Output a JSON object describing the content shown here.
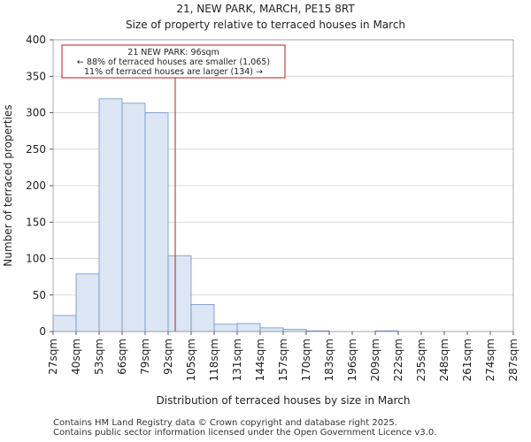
{
  "chart_data": {
    "type": "bar",
    "title": "21, NEW PARK, MARCH, PE15 8RT",
    "subtitle": "Size of property relative to terraced houses in March",
    "xlabel": "Distribution of terraced houses by size in March",
    "ylabel": "Number of terraced properties",
    "ylim": [
      0,
      400
    ],
    "yticks": [
      0,
      50,
      100,
      150,
      200,
      250,
      300,
      350,
      400
    ],
    "bin_edges": [
      27,
      40,
      53,
      66,
      79,
      92,
      105,
      118,
      131,
      144,
      157,
      170,
      183,
      196,
      209,
      222,
      235,
      248,
      261,
      274,
      287
    ],
    "xtick_labels": [
      "27sqm",
      "40sqm",
      "53sqm",
      "66sqm",
      "79sqm",
      "92sqm",
      "105sqm",
      "118sqm",
      "131sqm",
      "144sqm",
      "157sqm",
      "170sqm",
      "183sqm",
      "196sqm",
      "209sqm",
      "222sqm",
      "235sqm",
      "248sqm",
      "261sqm",
      "274sqm",
      "287sqm"
    ],
    "values": [
      22,
      79,
      319,
      313,
      300,
      104,
      37,
      10,
      11,
      5,
      3,
      1,
      0,
      0,
      1,
      0,
      0,
      0,
      0,
      0
    ],
    "marker_value": 96,
    "annotation": [
      "21 NEW PARK: 96sqm",
      "← 88% of terraced houses are smaller (1,065)",
      "11% of terraced houses are larger (134) →"
    ],
    "colors": {
      "bar_fill": "#dce6f4",
      "bar_edge": "#6f93c9",
      "marker": "#b22222",
      "grid": "#cccccc"
    }
  },
  "footer": {
    "line1": "Contains HM Land Registry data © Crown copyright and database right 2025.",
    "line2": "Contains public sector information licensed under the Open Government Licence v3.0."
  }
}
